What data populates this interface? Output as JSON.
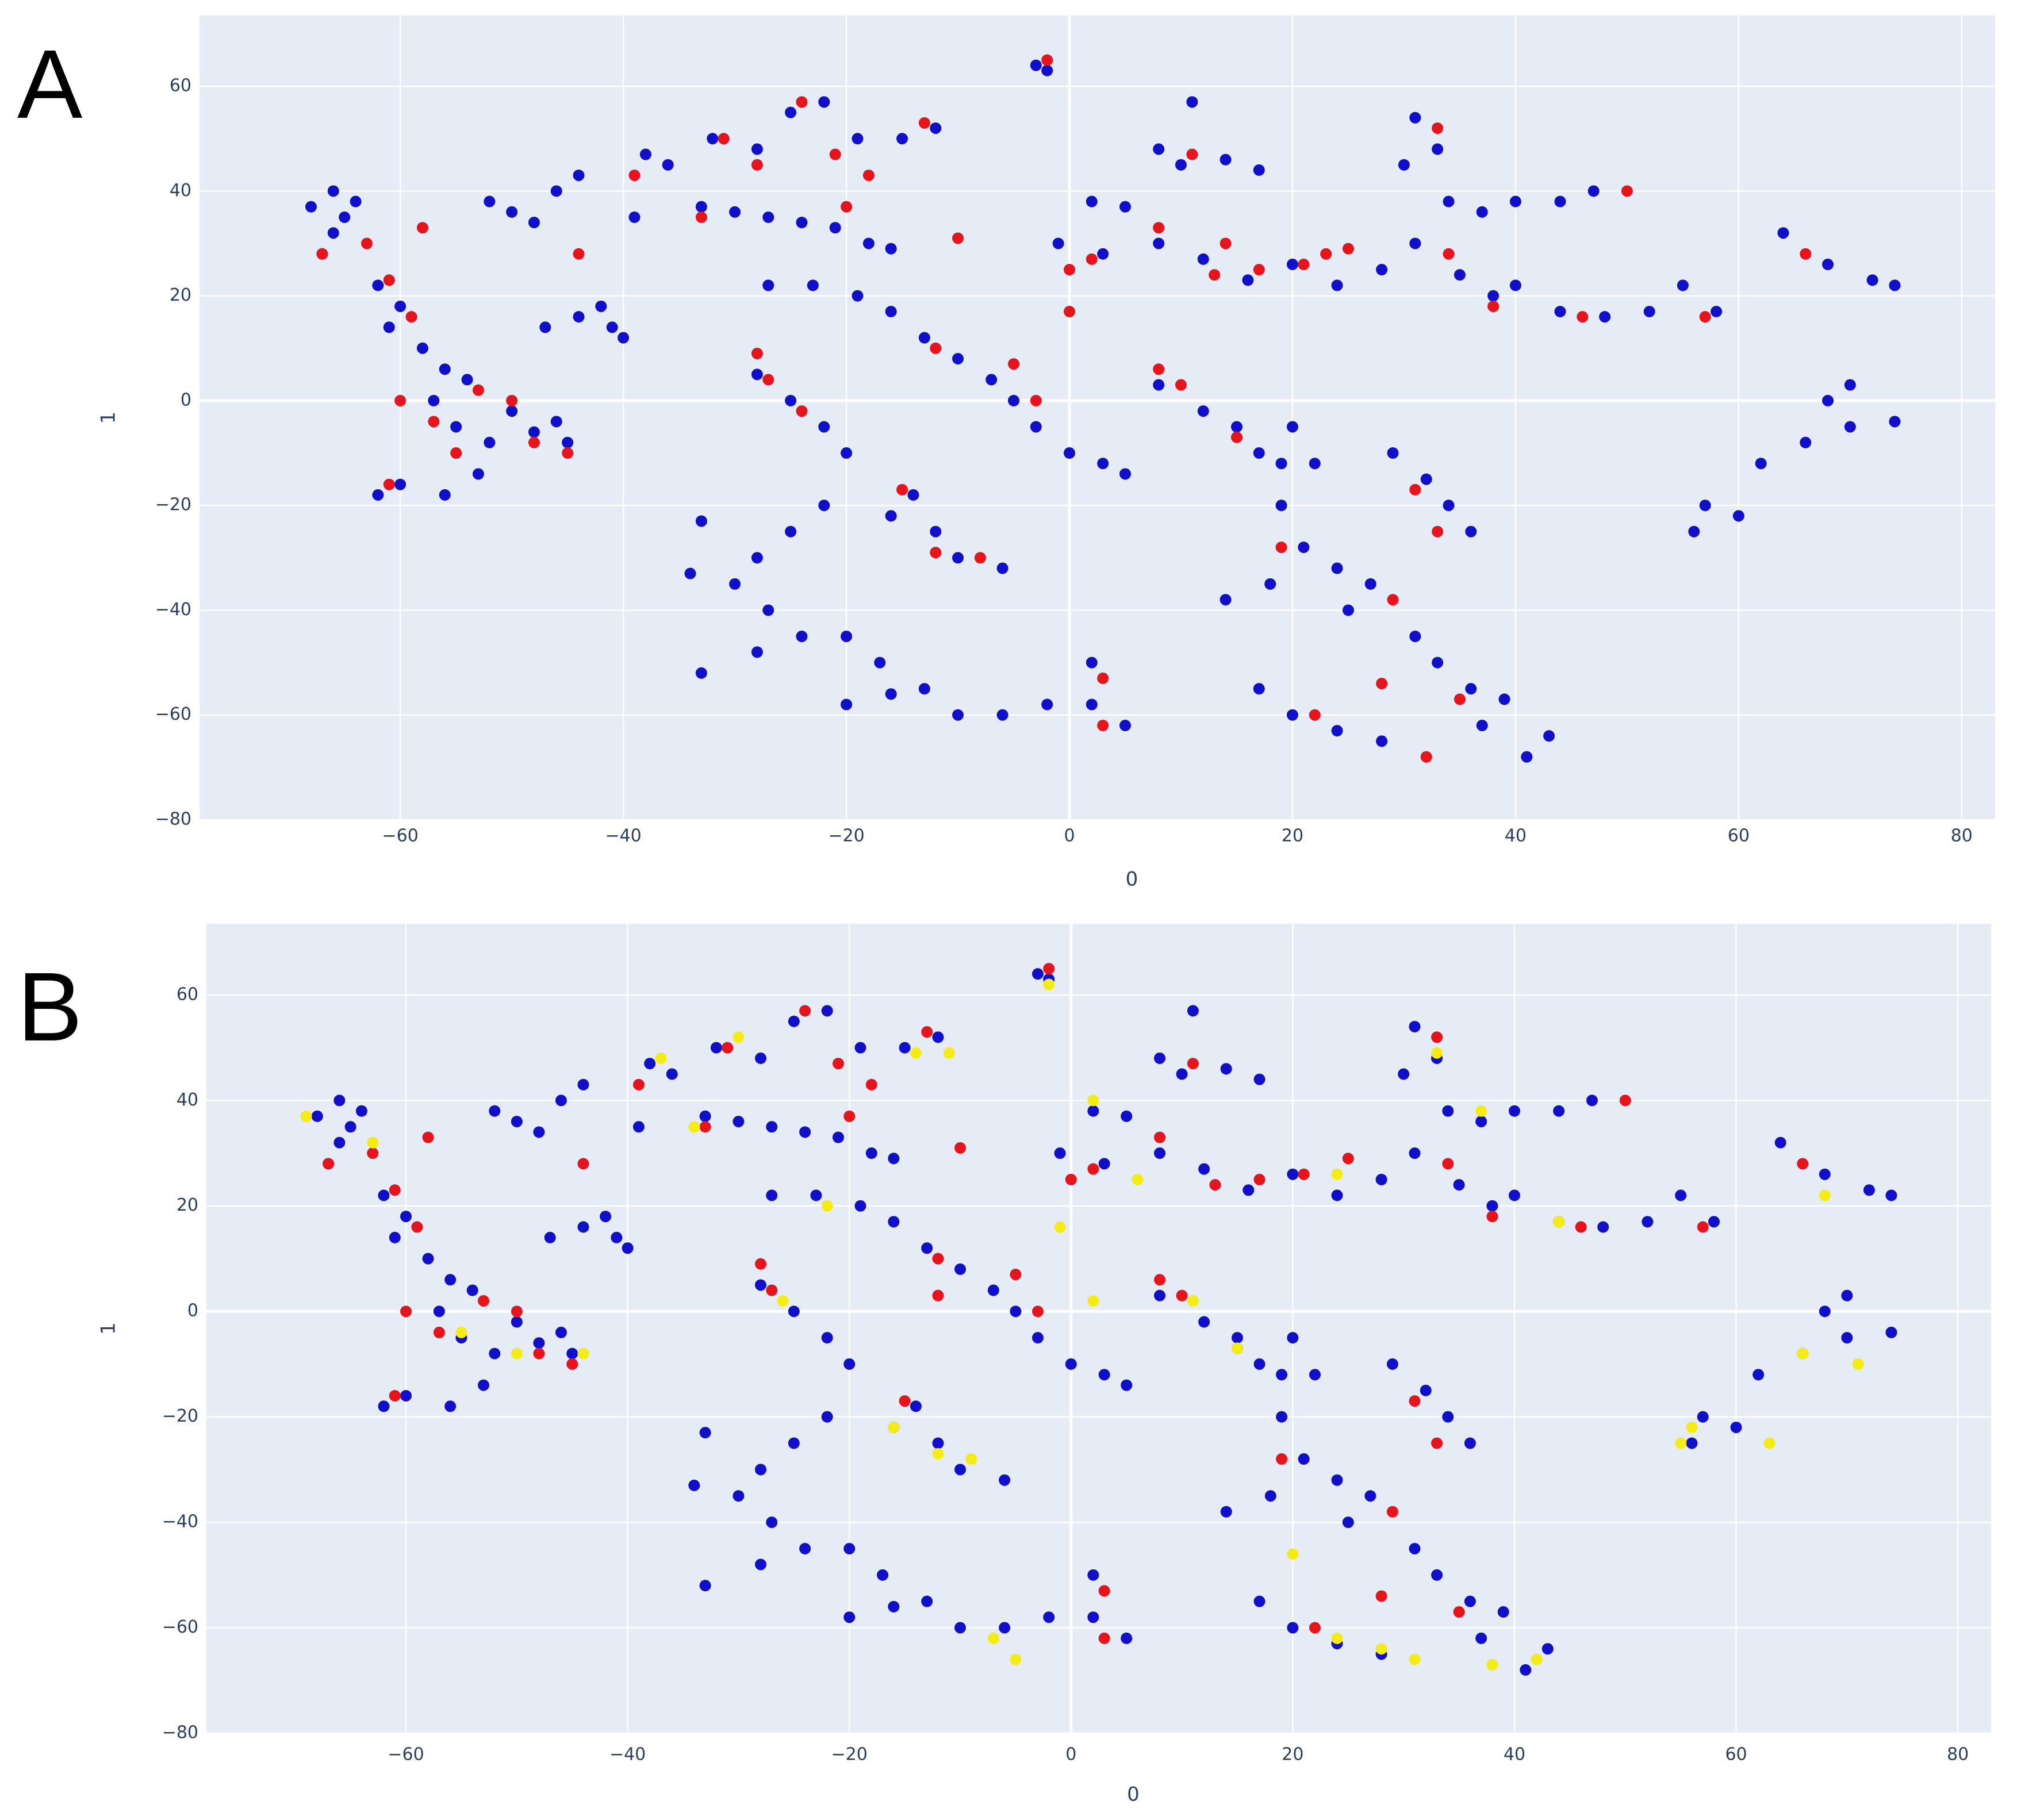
{
  "chart_data": [
    {
      "type": "scatter",
      "title": "A",
      "xlabel": "0",
      "ylabel": "1",
      "grid": true,
      "background": "#e5ecf6",
      "xlim": [
        -78,
        83
      ],
      "ylim": [
        -80,
        73.5
      ],
      "xticks": [
        {
          "value": -60,
          "label": "−60"
        },
        {
          "value": -40,
          "label": "−40"
        },
        {
          "value": -20,
          "label": "−20"
        },
        0,
        20,
        40,
        60,
        80
      ],
      "yticks": [
        {
          "value": -80,
          "label": "−80"
        },
        {
          "value": -60,
          "label": "−60"
        },
        {
          "value": -40,
          "label": "−40"
        },
        {
          "value": -20,
          "label": "−20"
        },
        0,
        20,
        40,
        60
      ],
      "series": [
        {
          "color": "#1010cc",
          "x": [
            -68,
            -66,
            -65,
            -66,
            -64,
            -67,
            -62,
            -60,
            -61,
            -58,
            -56,
            -54,
            -57,
            -55,
            -52,
            -53,
            -56,
            -62,
            -60,
            -50,
            -48,
            -46,
            -45,
            -52,
            -50,
            -48,
            -46,
            -44,
            -47,
            -44,
            -42,
            -41,
            -40,
            -39,
            -38,
            -36,
            -33,
            -30,
            -27,
            -24,
            -21,
            -18,
            -16,
            -32,
            -28,
            -25,
            -22,
            -19,
            -15,
            -12,
            -2,
            -3,
            -27,
            -23,
            -19,
            -16,
            -13,
            -10,
            -7,
            -5,
            -3,
            0,
            3,
            5,
            -28,
            -25,
            -22,
            -20,
            -22,
            -25,
            -28,
            -30,
            -27,
            -24,
            -28,
            -33,
            -20,
            -17,
            -13,
            -10,
            -6,
            -2,
            2,
            5,
            -20,
            -16,
            -33,
            -34,
            -12,
            -10,
            -6,
            2,
            -14,
            -16,
            5,
            8,
            10,
            14,
            17,
            11,
            2,
            -1,
            3,
            8,
            12,
            16,
            20,
            24,
            28,
            31,
            33,
            30,
            34,
            37,
            40,
            44,
            47,
            31,
            35,
            38,
            40,
            44,
            48,
            52,
            55,
            58,
            64,
            68,
            72,
            74,
            8,
            12,
            15,
            17,
            19,
            20,
            22,
            19,
            21,
            24,
            27,
            25,
            29,
            32,
            34,
            36,
            31,
            33,
            36,
            39,
            37,
            41,
            43,
            20,
            24,
            28,
            17,
            56,
            57,
            60,
            62,
            66,
            70,
            74,
            68,
            70,
            14,
            18
          ],
          "y": [
            37,
            40,
            35,
            32,
            38,
            28,
            22,
            18,
            14,
            10,
            6,
            4,
            0,
            -5,
            -8,
            -14,
            -18,
            -18,
            -16,
            -2,
            -6,
            -4,
            -8,
            38,
            36,
            34,
            40,
            43,
            14,
            16,
            18,
            14,
            12,
            35,
            47,
            45,
            37,
            36,
            35,
            34,
            33,
            30,
            29,
            50,
            48,
            55,
            57,
            50,
            50,
            52,
            63,
            64,
            22,
            22,
            20,
            17,
            12,
            8,
            4,
            0,
            -5,
            -10,
            -12,
            -14,
            5,
            0,
            -5,
            -10,
            -20,
            -25,
            -30,
            -35,
            -40,
            -45,
            -48,
            -52,
            -45,
            -50,
            -55,
            -60,
            -60,
            -58,
            -58,
            -62,
            -58,
            -56,
            -23,
            -33,
            -25,
            -30,
            -32,
            -50,
            -18,
            -22,
            37,
            48,
            45,
            46,
            44,
            57,
            38,
            30,
            28,
            30,
            27,
            23,
            26,
            22,
            25,
            54,
            48,
            45,
            38,
            36,
            38,
            38,
            40,
            30,
            24,
            20,
            22,
            17,
            16,
            17,
            22,
            17,
            32,
            26,
            23,
            22,
            3,
            -2,
            -5,
            -10,
            -12,
            -5,
            -12,
            -20,
            -28,
            -32,
            -35,
            -40,
            -10,
            -15,
            -20,
            -25,
            -45,
            -50,
            -55,
            -57,
            -62,
            -68,
            -64,
            -60,
            -63,
            -65,
            -55,
            -25,
            -20,
            -22,
            -12,
            -8,
            -5,
            -4,
            0,
            3,
            -38,
            -35
          ]
        },
        {
          "color": "#e8141c",
          "x": [
            -67,
            -63,
            -58,
            -61,
            -59,
            -60,
            -57,
            -55,
            -53,
            -50,
            -48,
            -45,
            -61,
            -44,
            -39,
            -33,
            -31,
            -28,
            -24,
            -21,
            -18,
            -13,
            -10,
            -28,
            -27,
            -24,
            -20,
            -15,
            -12,
            -8,
            -5,
            -3,
            -2,
            -12,
            0,
            2,
            8,
            11,
            14,
            17,
            21,
            25,
            28,
            29,
            31,
            33,
            35,
            32,
            38,
            46,
            50,
            57,
            66,
            8,
            10,
            15,
            0,
            19,
            22,
            3,
            3,
            13,
            23,
            34,
            33
          ],
          "y": [
            28,
            30,
            33,
            23,
            16,
            0,
            -4,
            -10,
            2,
            0,
            -8,
            -10,
            -16,
            28,
            43,
            35,
            50,
            45,
            57,
            47,
            43,
            53,
            31,
            9,
            4,
            -2,
            37,
            -17,
            -29,
            -30,
            7,
            0,
            65,
            10,
            25,
            27,
            33,
            47,
            30,
            25,
            26,
            29,
            -54,
            -38,
            -17,
            -25,
            -57,
            -68,
            18,
            16,
            40,
            16,
            28,
            6,
            3,
            -7,
            17,
            -28,
            -60,
            -62,
            -53,
            24,
            28,
            28,
            52
          ]
        }
      ]
    },
    {
      "type": "scatter",
      "title": "B",
      "xlabel": "0",
      "ylabel": "1",
      "grid": true,
      "background": "#e5ecf6",
      "xlim": [
        -78,
        83
      ],
      "ylim": [
        -80,
        73.5
      ],
      "xticks": [
        {
          "value": -60,
          "label": "−60"
        },
        {
          "value": -40,
          "label": "−40"
        },
        {
          "value": -20,
          "label": "−20"
        },
        0,
        20,
        40,
        60,
        80
      ],
      "yticks": [
        {
          "value": -80,
          "label": "−80"
        },
        {
          "value": -60,
          "label": "−60"
        },
        {
          "value": -40,
          "label": "−40"
        },
        {
          "value": -20,
          "label": "−20"
        },
        0,
        20,
        40,
        60
      ],
      "series": [
        {
          "color": "#1010cc",
          "x": [
            -68,
            -66,
            -65,
            -66,
            -64,
            -67,
            -62,
            -60,
            -61,
            -58,
            -56,
            -54,
            -57,
            -55,
            -52,
            -53,
            -56,
            -62,
            -60,
            -50,
            -48,
            -46,
            -45,
            -52,
            -50,
            -48,
            -46,
            -44,
            -47,
            -44,
            -42,
            -41,
            -40,
            -39,
            -38,
            -36,
            -33,
            -30,
            -27,
            -24,
            -21,
            -18,
            -16,
            -32,
            -28,
            -25,
            -22,
            -19,
            -15,
            -12,
            -2,
            -3,
            -27,
            -23,
            -19,
            -16,
            -13,
            -10,
            -7,
            -5,
            -3,
            0,
            3,
            5,
            -28,
            -25,
            -22,
            -20,
            -22,
            -25,
            -28,
            -30,
            -27,
            -24,
            -28,
            -33,
            -20,
            -17,
            -13,
            -10,
            -6,
            -2,
            2,
            5,
            -20,
            -16,
            -33,
            -34,
            -12,
            -10,
            -6,
            2,
            -14,
            -16,
            5,
            8,
            10,
            14,
            17,
            11,
            2,
            -1,
            3,
            8,
            12,
            16,
            20,
            24,
            28,
            31,
            33,
            30,
            34,
            37,
            40,
            44,
            47,
            31,
            35,
            38,
            40,
            44,
            48,
            52,
            55,
            58,
            64,
            68,
            72,
            74,
            8,
            12,
            15,
            17,
            19,
            20,
            22,
            19,
            21,
            24,
            27,
            25,
            29,
            32,
            34,
            36,
            31,
            33,
            36,
            39,
            37,
            41,
            43,
            20,
            24,
            28,
            17,
            56,
            57,
            60,
            62,
            66,
            70,
            74,
            68,
            70,
            14,
            18
          ],
          "y": [
            37,
            40,
            35,
            32,
            38,
            28,
            22,
            18,
            14,
            10,
            6,
            4,
            0,
            -5,
            -8,
            -14,
            -18,
            -18,
            -16,
            -2,
            -6,
            -4,
            -8,
            38,
            36,
            34,
            40,
            43,
            14,
            16,
            18,
            14,
            12,
            35,
            47,
            45,
            37,
            36,
            35,
            34,
            33,
            30,
            29,
            50,
            48,
            55,
            57,
            50,
            50,
            52,
            63,
            64,
            22,
            22,
            20,
            17,
            12,
            8,
            4,
            0,
            -5,
            -10,
            -12,
            -14,
            5,
            0,
            -5,
            -10,
            -20,
            -25,
            -30,
            -35,
            -40,
            -45,
            -48,
            -52,
            -45,
            -50,
            -55,
            -60,
            -60,
            -58,
            -58,
            -62,
            -58,
            -56,
            -23,
            -33,
            -25,
            -30,
            -32,
            -50,
            -18,
            -22,
            37,
            48,
            45,
            46,
            44,
            57,
            38,
            30,
            28,
            30,
            27,
            23,
            26,
            22,
            25,
            54,
            48,
            45,
            38,
            36,
            38,
            38,
            40,
            30,
            24,
            20,
            22,
            17,
            16,
            17,
            22,
            17,
            32,
            26,
            23,
            22,
            3,
            -2,
            -5,
            -10,
            -12,
            -5,
            -12,
            -20,
            -28,
            -32,
            -35,
            -40,
            -10,
            -15,
            -20,
            -25,
            -45,
            -50,
            -55,
            -57,
            -62,
            -68,
            -64,
            -60,
            -63,
            -65,
            -55,
            -25,
            -20,
            -22,
            -12,
            -8,
            -5,
            -4,
            0,
            3,
            -38,
            -35
          ]
        },
        {
          "color": "#e8141c",
          "x": [
            -67,
            -63,
            -58,
            -61,
            -59,
            -60,
            -57,
            -53,
            -50,
            -48,
            -45,
            -61,
            -44,
            -39,
            -33,
            -31,
            -24,
            -21,
            -18,
            -13,
            -10,
            -28,
            -27,
            -20,
            -15,
            -12,
            -5,
            -3,
            -2,
            -12,
            0,
            2,
            8,
            11,
            17,
            21,
            25,
            28,
            29,
            31,
            33,
            35,
            38,
            46,
            50,
            57,
            66,
            8,
            10,
            15,
            19,
            22,
            3,
            3,
            13,
            34,
            33
          ],
          "y": [
            28,
            30,
            33,
            23,
            16,
            0,
            -4,
            2,
            0,
            -8,
            -10,
            -16,
            28,
            43,
            35,
            50,
            57,
            47,
            43,
            53,
            31,
            9,
            4,
            37,
            -17,
            10,
            7,
            0,
            65,
            3,
            25,
            27,
            33,
            47,
            25,
            26,
            29,
            -54,
            -38,
            -17,
            -25,
            -57,
            18,
            16,
            40,
            16,
            28,
            6,
            3,
            -7,
            -28,
            -60,
            -62,
            -53,
            24,
            28,
            52
          ]
        },
        {
          "color": "#f5ec14",
          "x": [
            -69,
            -63,
            -55,
            -50,
            -44,
            -37,
            -34,
            -30,
            -14,
            -11,
            -26,
            -22,
            -16,
            -12,
            -9,
            -7,
            -5,
            -2,
            -1,
            2,
            6,
            11,
            15,
            20,
            24,
            28,
            31,
            38,
            42,
            56,
            55,
            63,
            66,
            71,
            68,
            37,
            33,
            2,
            44,
            24
          ],
          "y": [
            37,
            32,
            -4,
            -8,
            -8,
            48,
            35,
            52,
            49,
            49,
            2,
            20,
            -22,
            -27,
            -28,
            -62,
            -66,
            62,
            16,
            2,
            25,
            2,
            -7,
            -46,
            -62,
            -64,
            -66,
            -67,
            -66,
            -22,
            -25,
            -25,
            -8,
            -10,
            22,
            38,
            49,
            40,
            17,
            26
          ]
        }
      ]
    }
  ]
}
